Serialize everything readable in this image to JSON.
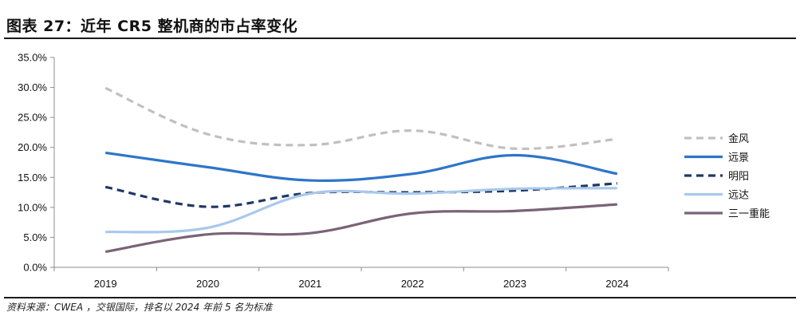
{
  "header": {
    "title": "图表 27：近年 CR5 整机商的市占率变化"
  },
  "footer": {
    "source": "资料来源：CWEA ，交银国际，排名以 2024 年前 5 名为标准"
  },
  "chart_data": {
    "type": "line",
    "title": "",
    "xlabel": "",
    "ylabel": "",
    "categories": [
      "2019",
      "2020",
      "2021",
      "2022",
      "2023",
      "2024"
    ],
    "ylim": [
      0,
      35
    ],
    "yticks": [
      "0.0%",
      "5.0%",
      "10.0%",
      "15.0%",
      "20.0%",
      "25.0%",
      "30.0%",
      "35.0%"
    ],
    "grid": false,
    "legend_position": "right",
    "series": [
      {
        "name": "金风",
        "values": [
          29.9,
          22.2,
          20.4,
          22.8,
          19.8,
          21.4
        ],
        "color": "#c0c0c0",
        "dash": true
      },
      {
        "name": "远景",
        "values": [
          19.1,
          16.7,
          14.5,
          15.6,
          18.7,
          15.6
        ],
        "color": "#2e75c9",
        "dash": false
      },
      {
        "name": "明阳",
        "values": [
          13.4,
          10.1,
          12.4,
          12.5,
          12.8,
          14.0
        ],
        "color": "#1f3864",
        "dash": true
      },
      {
        "name": "远达",
        "values": [
          5.9,
          6.6,
          12.3,
          12.3,
          13.1,
          13.2
        ],
        "color": "#a9c8ec",
        "dash": false
      },
      {
        "name": "三一重能",
        "values": [
          2.6,
          5.5,
          5.7,
          9.0,
          9.4,
          10.5
        ],
        "color": "#7a6377",
        "dash": false
      }
    ]
  }
}
